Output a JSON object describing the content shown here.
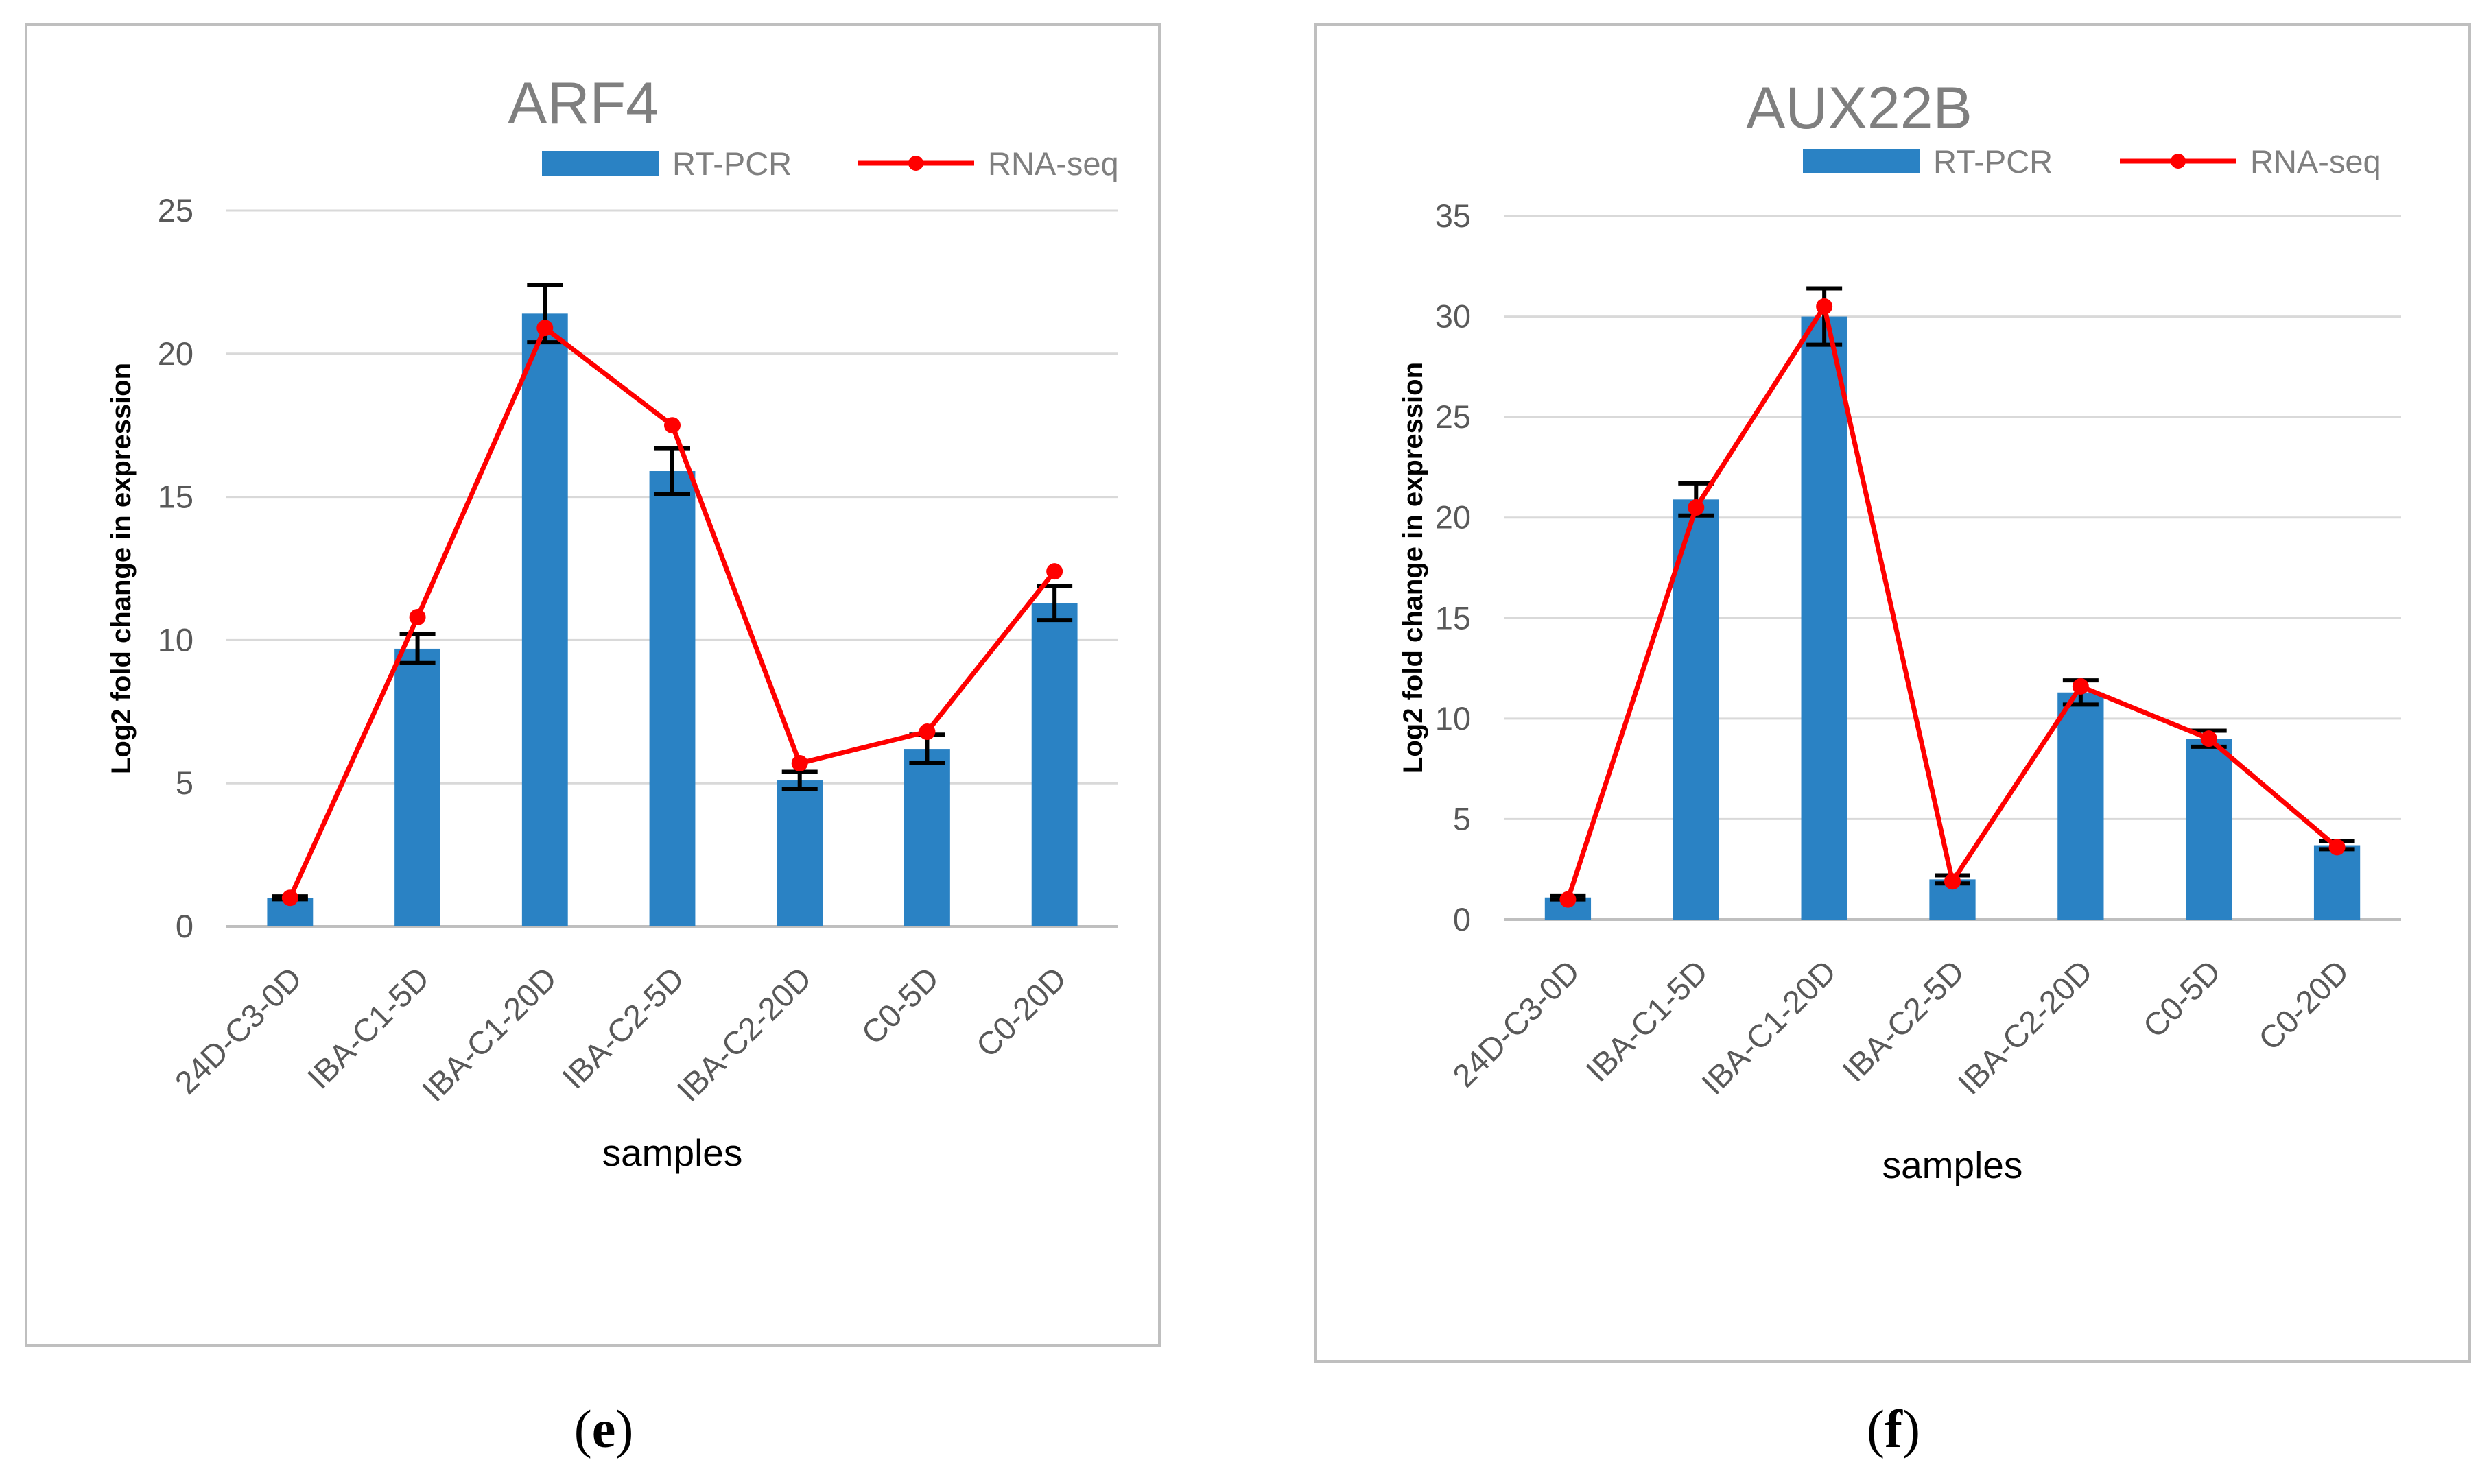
{
  "colors": {
    "bar": "#2a82c4",
    "line": "#ff0000",
    "grid": "#d9d9d9",
    "frame": "#bfbfbf",
    "error": "#000000"
  },
  "chart_data": [
    {
      "panel": "(e)",
      "type": "bar",
      "title": "ARF4",
      "xlabel": "samples",
      "ylabel": "Log2 fold change  in expression",
      "ylim": [
        0,
        25
      ],
      "yticks": [
        0,
        5,
        10,
        15,
        20,
        25
      ],
      "categories": [
        "24D-C3-0D",
        "IBA-C1-5D",
        "IBA-C1-20D",
        "IBA-C2-5D",
        "IBA-C2-20D",
        "C0-5D",
        "C0-20D"
      ],
      "legend": [
        "RT-PCR",
        "RNA-seq"
      ],
      "series": [
        {
          "name": "RT-PCR",
          "type": "bar",
          "values": [
            1.0,
            9.7,
            21.4,
            15.9,
            5.1,
            6.2,
            11.3
          ],
          "error": [
            0.05,
            0.5,
            1.0,
            0.8,
            0.3,
            0.5,
            0.6
          ]
        },
        {
          "name": "RNA-seq",
          "type": "line",
          "values": [
            1.0,
            10.8,
            20.9,
            17.5,
            5.7,
            6.8,
            12.4
          ]
        }
      ]
    },
    {
      "panel": "(f)",
      "type": "bar",
      "title": "AUX22B",
      "xlabel": "samples",
      "ylabel": "Log2 fold change in expression",
      "ylim": [
        0,
        35
      ],
      "yticks": [
        0,
        5,
        10,
        15,
        20,
        25,
        30,
        35
      ],
      "categories": [
        "24D-C3-0D",
        "IBA-C1-5D",
        "IBA-C1-20D",
        "IBA-C2-5D",
        "IBA-C2-20D",
        "C0-5D",
        "C0-20D"
      ],
      "legend": [
        "RT-PCR",
        "RNA-seq"
      ],
      "series": [
        {
          "name": "RT-PCR",
          "type": "bar",
          "values": [
            1.1,
            20.9,
            30.0,
            2.0,
            11.3,
            9.0,
            3.7
          ],
          "error": [
            0.1,
            0.8,
            1.4,
            0.2,
            0.6,
            0.4,
            0.2
          ]
        },
        {
          "name": "RNA-seq",
          "type": "line",
          "values": [
            1.0,
            20.5,
            30.5,
            1.9,
            11.6,
            9.0,
            3.6
          ]
        }
      ]
    }
  ]
}
